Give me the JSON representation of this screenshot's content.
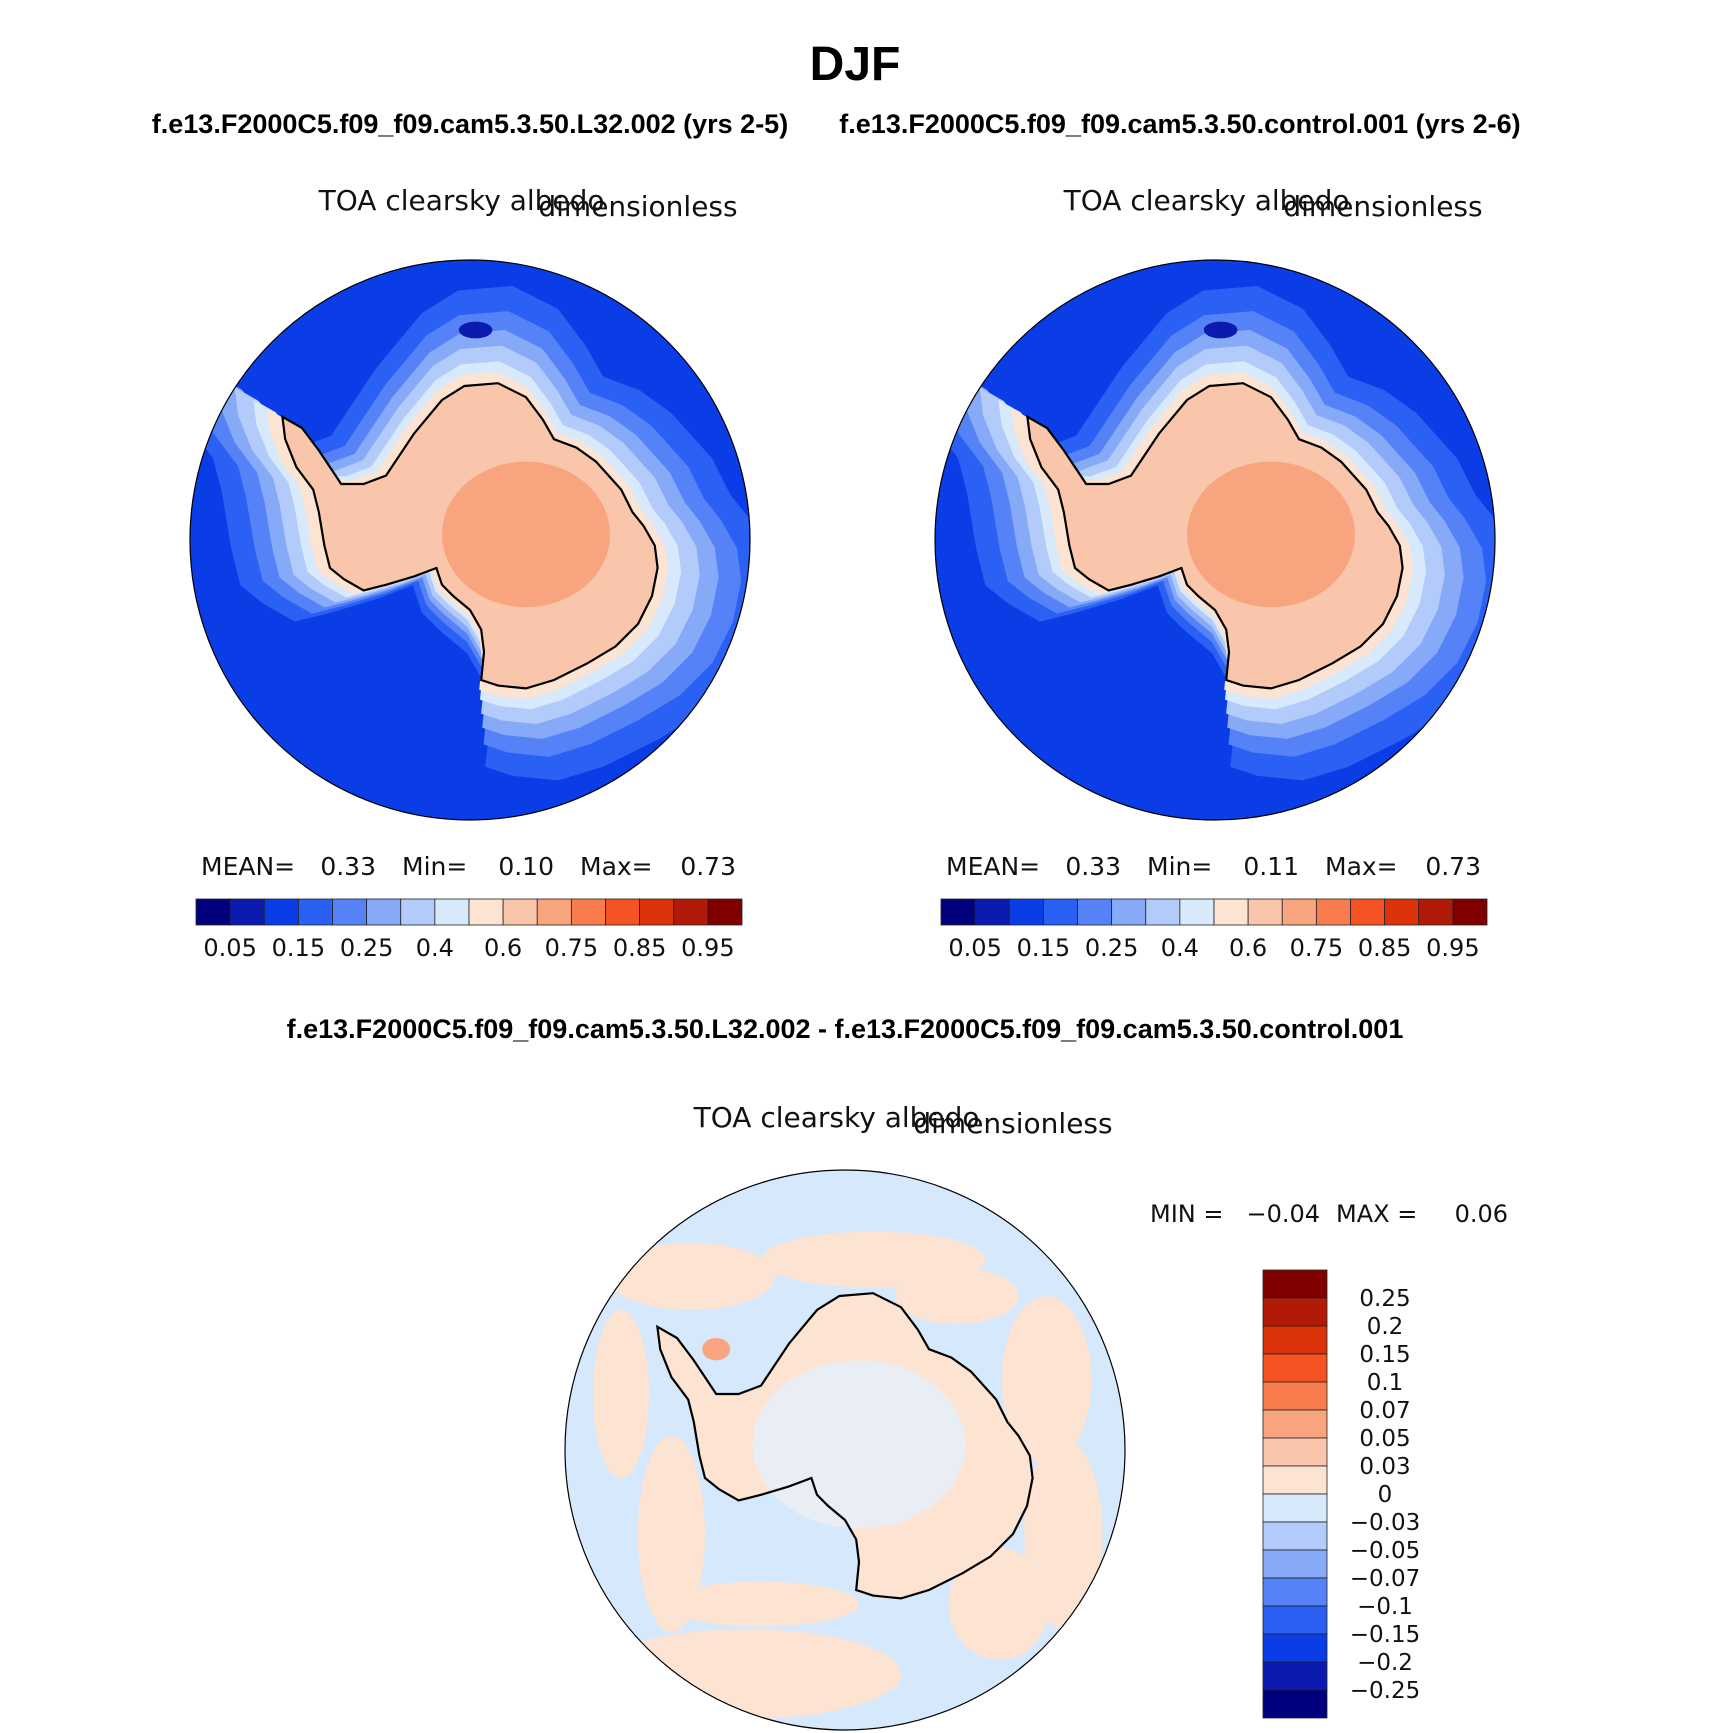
{
  "figure": {
    "title": "DJF"
  },
  "colors": {
    "ocean_deep": "#0a3de6",
    "antarctica": "#f9c6ab",
    "antarctica_high": "#f8a47e",
    "coast_light": "#d7e9fb",
    "diff_positive": "#fde4d2",
    "diff_negative": "#d6e8fb"
  },
  "chart_data": [
    {
      "type": "heatmap",
      "case_title": "f.e13.F2000C5.f09_f09.cam5.3.50.L32.002 (yrs 2-5)",
      "variable": "TOA clearsky albedo",
      "units": "dimensionless",
      "projection": "south-polar stereographic",
      "stats": {
        "mean_label": "MEAN=",
        "mean": "0.33",
        "min_label": "Min=",
        "min": "0.10",
        "max_label": "Max=",
        "max": "0.73"
      },
      "levels": [
        0.05,
        0.1,
        0.15,
        0.2,
        0.25,
        0.3,
        0.4,
        0.5,
        0.6,
        0.7,
        0.75,
        0.8,
        0.85,
        0.9,
        0.95
      ],
      "colorbar_labels": [
        "0.05",
        "0.15",
        "0.25",
        "0.4",
        "0.6",
        "0.75",
        "0.85",
        "0.95"
      ],
      "colorbar_colors": [
        "#00007f",
        "#0b1bb0",
        "#0a3de6",
        "#2a60f4",
        "#5583f7",
        "#86a9f8",
        "#b2cbfb",
        "#d7e9fb",
        "#fde4d2",
        "#f9c6ab",
        "#f8a47e",
        "#f97c4e",
        "#f75221",
        "#dc330b",
        "#b11a08",
        "#800000"
      ],
      "legend_placement": "bottom"
    },
    {
      "type": "heatmap",
      "case_title": "f.e13.F2000C5.f09_f09.cam5.3.50.control.001 (yrs 2-6)",
      "variable": "TOA clearsky albedo",
      "units": "dimensionless",
      "projection": "south-polar stereographic",
      "stats": {
        "mean_label": "MEAN=",
        "mean": "0.33",
        "min_label": "Min=",
        "min": "0.11",
        "max_label": "Max=",
        "max": "0.73"
      },
      "levels": [
        0.05,
        0.1,
        0.15,
        0.2,
        0.25,
        0.3,
        0.4,
        0.5,
        0.6,
        0.7,
        0.75,
        0.8,
        0.85,
        0.9,
        0.95
      ],
      "colorbar_labels": [
        "0.05",
        "0.15",
        "0.25",
        "0.4",
        "0.6",
        "0.75",
        "0.85",
        "0.95"
      ],
      "colorbar_colors": [
        "#00007f",
        "#0b1bb0",
        "#0a3de6",
        "#2a60f4",
        "#5583f7",
        "#86a9f8",
        "#b2cbfb",
        "#d7e9fb",
        "#fde4d2",
        "#f9c6ab",
        "#f8a47e",
        "#f97c4e",
        "#f75221",
        "#dc330b",
        "#b11a08",
        "#800000"
      ],
      "legend_placement": "bottom"
    },
    {
      "type": "heatmap",
      "case_title": "f.e13.F2000C5.f09_f09.cam5.3.50.L32.002 - f.e13.F2000C5.f09_f09.cam5.3.50.control.001",
      "variable": "TOA clearsky albedo",
      "units": "dimensionless",
      "projection": "south-polar stereographic",
      "stats": {
        "min_label": "MIN =",
        "min": "−0.04",
        "max_label": "MAX =",
        "max": "0.06"
      },
      "levels_labels": [
        "0.25",
        "0.2",
        "0.15",
        "0.1",
        "0.07",
        "0.05",
        "0.03",
        "0",
        "−0.03",
        "−0.05",
        "−0.07",
        "−0.1",
        "−0.15",
        "−0.2",
        "−0.25"
      ],
      "colorbar_colors": [
        "#800000",
        "#b11a08",
        "#dc330b",
        "#f75221",
        "#f97c4e",
        "#f8a47e",
        "#f9c6ab",
        "#fde4d2",
        "#d7e9fb",
        "#b2cbfb",
        "#86a9f8",
        "#5583f7",
        "#2a60f4",
        "#0a3de6",
        "#0b1bb0",
        "#00007f"
      ],
      "legend_placement": "right"
    }
  ]
}
